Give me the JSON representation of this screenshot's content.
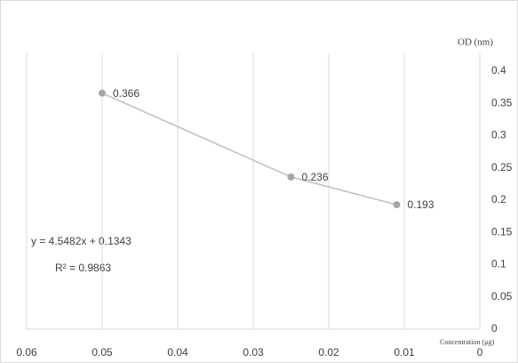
{
  "chart_data": {
    "type": "line",
    "x_label": "Concentration (µg)",
    "y_label": "OD (nm)",
    "annotations": [
      "y = 4.5482x + 0.1343",
      "R² = 0.9863"
    ],
    "x": [
      0.05,
      0.025,
      0.011
    ],
    "series": [
      {
        "name": null,
        "color": "#a6a6a6",
        "values": [
          0.366,
          0.236,
          0.193
        ]
      }
    ],
    "xlim": [
      0.06,
      0
    ],
    "xticks": [
      0.06,
      0.05,
      0.04,
      0.03,
      0.02,
      0.01,
      0
    ],
    "ylim": [
      0,
      0.4
    ],
    "yticks": [
      0,
      0.05,
      0.1,
      0.15,
      0.2,
      0.25,
      0.3,
      0.35,
      0.4
    ],
    "grid": true
  }
}
